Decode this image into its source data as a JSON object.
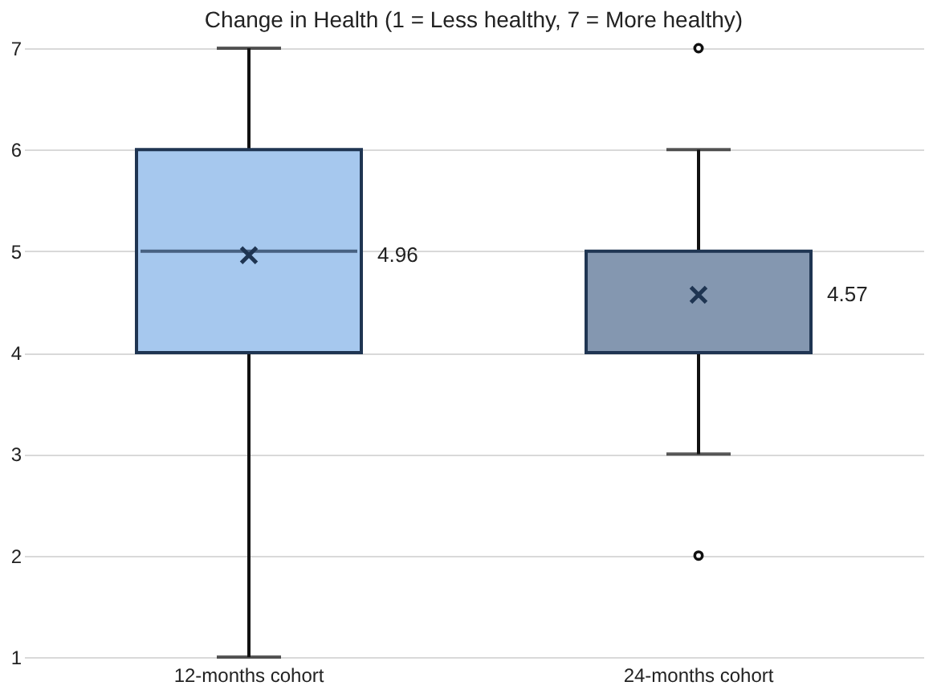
{
  "chart_data": {
    "type": "box",
    "title": "Change in Health (1 = Less healthy, 7 = More healthy)",
    "categories": [
      "12-months cohort",
      "24-months cohort"
    ],
    "colors": [
      "#a6c8ee",
      "#8497b0"
    ],
    "boxes": [
      {
        "low": 1,
        "q1": 4,
        "median": 5,
        "q3": 6,
        "high": 7,
        "mean": 4.96
      },
      {
        "low": 3,
        "q1": 4,
        "median": 4,
        "q3": 5,
        "high": 6,
        "mean": 4.57,
        "outliers": [
          2,
          7
        ]
      }
    ],
    "annotations": [
      "4.96",
      "4.57"
    ],
    "ylim": [
      1,
      7
    ],
    "yticks": [
      1,
      2,
      3,
      4,
      5,
      6,
      7
    ],
    "grid": "y"
  }
}
